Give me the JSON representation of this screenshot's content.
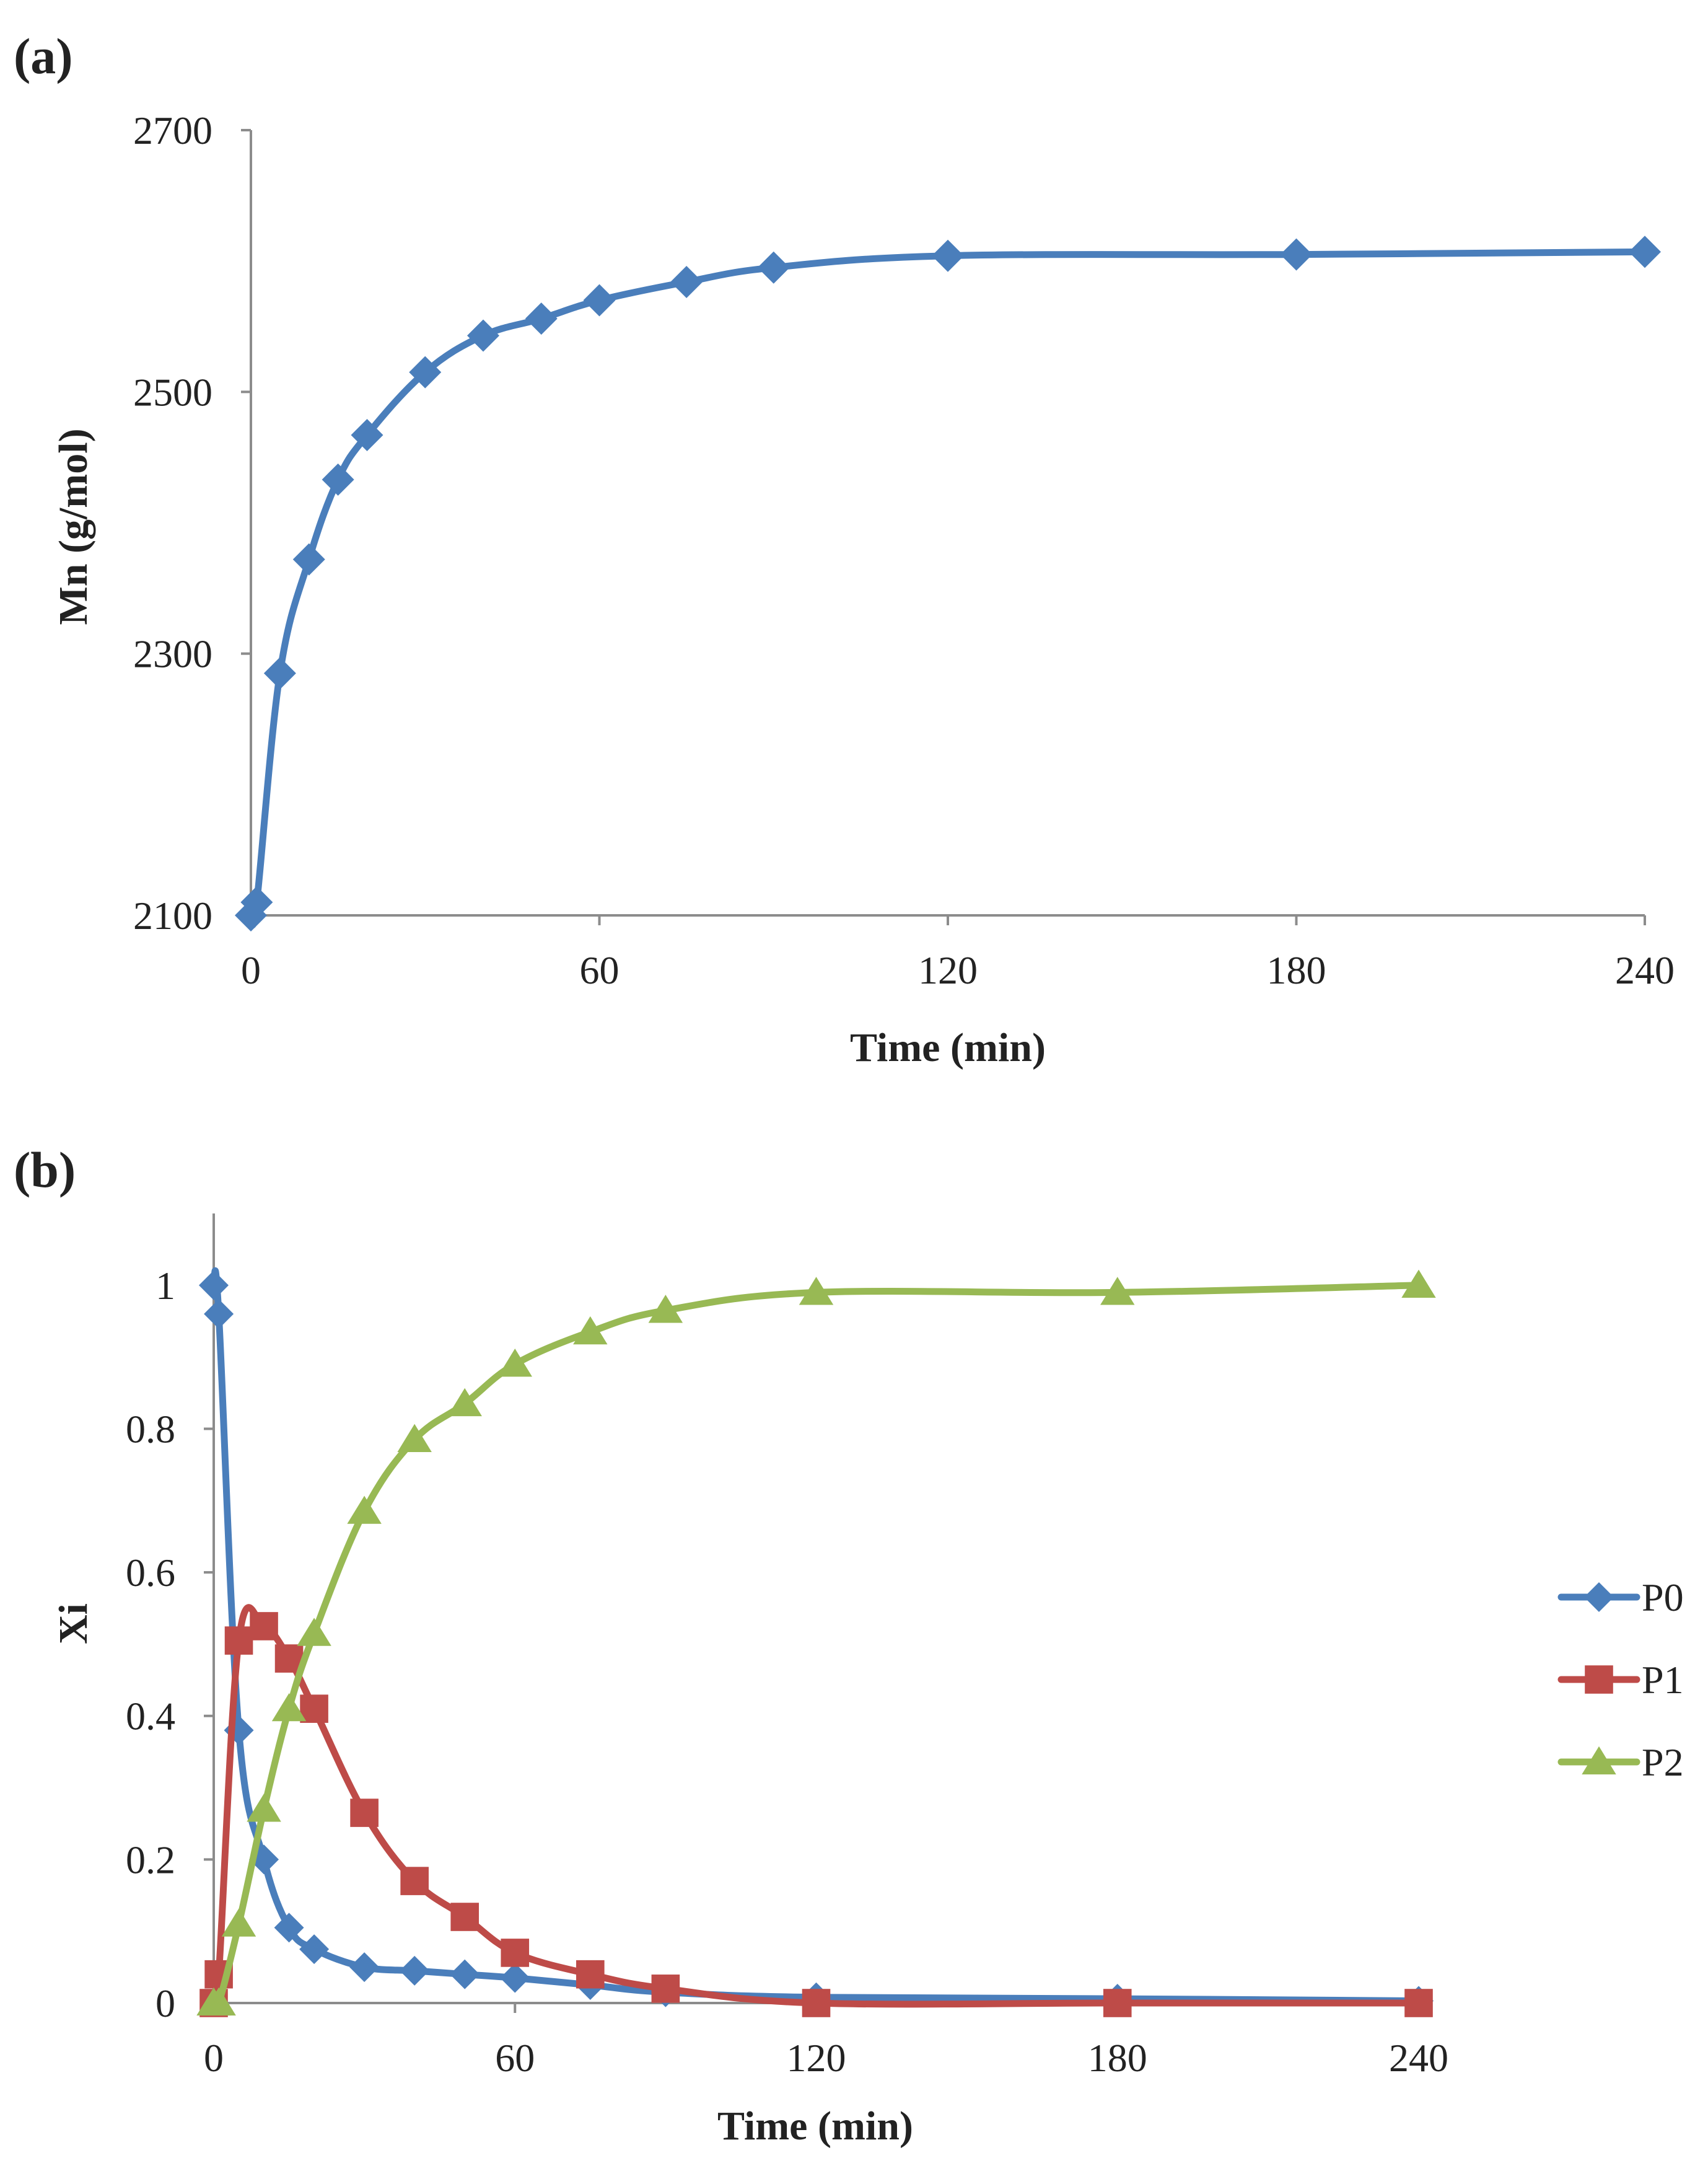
{
  "chart_data": [
    {
      "panel": "(a)",
      "type": "line",
      "title": "",
      "xlabel": "Time (min)",
      "ylabel": "Mn (g/mol)",
      "xlim": [
        0,
        240
      ],
      "ylim": [
        2100,
        2700
      ],
      "xticks": [
        "0",
        "60",
        "120",
        "180",
        "240"
      ],
      "yticks": [
        "2100",
        "2300",
        "2500",
        "2700"
      ],
      "grid": false,
      "legend": "none",
      "series": [
        {
          "name": "Mn",
          "color": "#4A7EBB",
          "marker": "diamond",
          "x": [
            0,
            1,
            5,
            10,
            15,
            20,
            30,
            40,
            50,
            60,
            75,
            90,
            120,
            180,
            240
          ],
          "y": [
            2100,
            2110,
            2285,
            2372,
            2433,
            2467,
            2515,
            2543,
            2556,
            2570,
            2584,
            2595,
            2604,
            2605,
            2607
          ]
        }
      ]
    },
    {
      "panel": "(b)",
      "type": "line",
      "title": "",
      "xlabel": "Time (min)",
      "ylabel": "Xi",
      "xlim": [
        0,
        240
      ],
      "ylim": [
        0,
        1.1
      ],
      "xticks": [
        "0",
        "60",
        "120",
        "180",
        "240"
      ],
      "yticks": [
        "0",
        "0.2",
        "0.4",
        "0.6",
        "0.8",
        "1"
      ],
      "grid": false,
      "legend": "right",
      "series": [
        {
          "name": "P0",
          "color": "#4A7EBB",
          "marker": "diamond",
          "x": [
            0,
            1,
            5,
            10,
            15,
            20,
            30,
            40,
            50,
            60,
            75,
            90,
            120,
            180,
            240
          ],
          "y": [
            1.0,
            0.96,
            0.38,
            0.2,
            0.105,
            0.075,
            0.05,
            0.045,
            0.04,
            0.035,
            0.025,
            0.015,
            0.008,
            0.006,
            0.003
          ]
        },
        {
          "name": "P1",
          "color": "#BE4B48",
          "marker": "square",
          "x": [
            0,
            1,
            5,
            10,
            15,
            20,
            30,
            40,
            50,
            60,
            75,
            90,
            120,
            180,
            240
          ],
          "y": [
            0.0,
            0.04,
            0.505,
            0.525,
            0.48,
            0.41,
            0.265,
            0.17,
            0.12,
            0.07,
            0.04,
            0.02,
            0.0,
            0.0,
            0.0
          ]
        },
        {
          "name": "P2",
          "color": "#98B954",
          "marker": "triangle",
          "x": [
            0,
            1,
            5,
            10,
            15,
            20,
            30,
            40,
            50,
            60,
            75,
            90,
            120,
            180,
            240
          ],
          "y": [
            0.0,
            0.0,
            0.11,
            0.27,
            0.41,
            0.515,
            0.685,
            0.785,
            0.835,
            0.89,
            0.935,
            0.965,
            0.99,
            0.99,
            1.0
          ]
        }
      ]
    }
  ]
}
